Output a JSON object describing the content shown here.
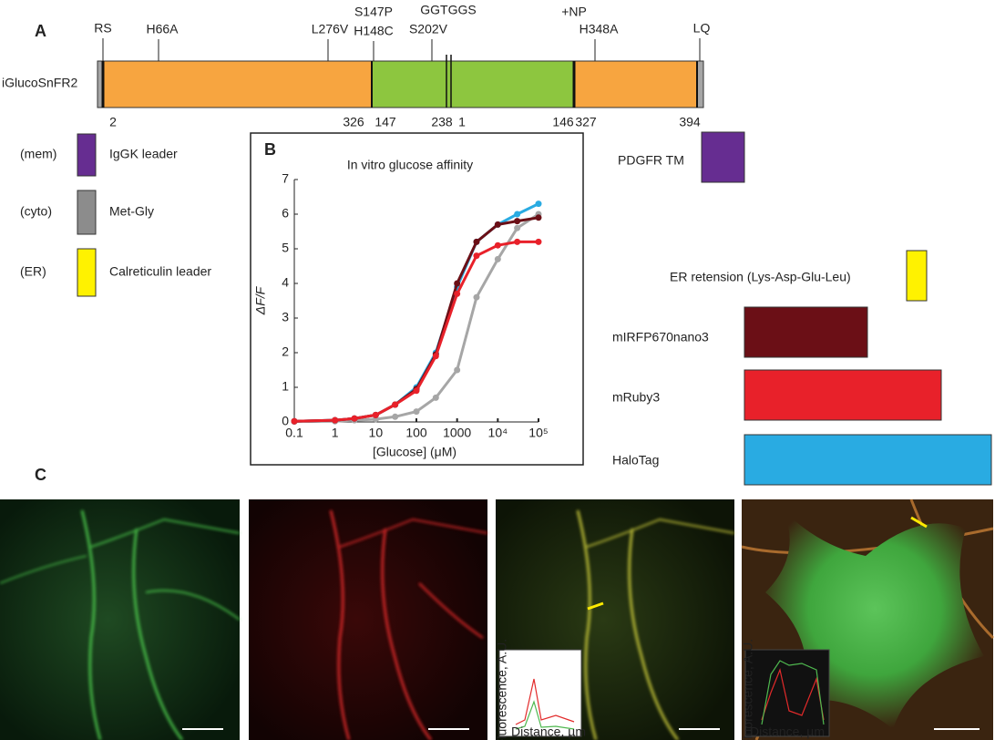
{
  "panel_a": {
    "label": "A",
    "construct": "iGlucoSnFR2",
    "sites": [
      "RS",
      "H66A",
      "L276V",
      "S147P",
      "H148C",
      "S202V",
      "GGTGGS",
      "+NP",
      "H348A",
      "LQ"
    ],
    "positions": [
      2,
      326,
      147,
      238,
      1,
      146,
      327,
      394
    ],
    "left_legend": [
      {
        "compartment": "(mem)",
        "name": "IgGK leader"
      },
      {
        "compartment": "(cyto)",
        "name": "Met-Gly"
      },
      {
        "compartment": "(ER)",
        "name": "Calreticulin leader"
      }
    ],
    "right_legend": [
      "PDGFR TM",
      "ER retension (Lys-Asp-Glu-Leu)"
    ]
  },
  "chart_data": {
    "type": "line",
    "panel_label": "B",
    "title": "In vitro glucose affinity",
    "x_label": "[Glucose] (μM)",
    "y_label": "ΔF/F",
    "x_log": true,
    "x": [
      0.1,
      1,
      3,
      10,
      30,
      100,
      300,
      1000,
      3000,
      10000,
      30000,
      100000
    ],
    "series": [
      {
        "color": "#a6a6a6",
        "values": [
          0.01,
          0.02,
          0.05,
          0.08,
          0.15,
          0.3,
          0.7,
          1.5,
          3.6,
          4.7,
          5.6,
          6.0
        ]
      },
      {
        "name": "HaloTag",
        "color": "#29abe2",
        "values": [
          0.02,
          0.05,
          0.1,
          0.2,
          0.5,
          1.0,
          2.0,
          3.9,
          5.2,
          5.7,
          6.0,
          6.3
        ]
      },
      {
        "name": "mIRFP670nano3",
        "color": "#6b0f16",
        "values": [
          0.02,
          0.05,
          0.1,
          0.2,
          0.5,
          0.95,
          1.95,
          4.0,
          5.2,
          5.7,
          5.8,
          5.9
        ]
      },
      {
        "name": "mRuby3",
        "color": "#e8212a",
        "values": [
          0.02,
          0.05,
          0.1,
          0.2,
          0.5,
          0.9,
          1.9,
          3.7,
          4.8,
          5.1,
          5.2,
          5.2
        ]
      }
    ],
    "xlim": [
      0.1,
      100000
    ],
    "ylim": [
      0,
      7
    ],
    "xticks": [
      0.1,
      1,
      10,
      100,
      1000,
      {
        "value": 10000,
        "label": "10⁴"
      },
      {
        "value": 100000,
        "label": "10⁵"
      }
    ],
    "yticks": [
      0,
      1,
      2,
      3,
      4,
      5,
      6,
      7
    ]
  },
  "panel_c": {
    "label": "C",
    "inset_x_label": "Distance, µm",
    "inset_y_label": "Fluorescence, A.U."
  }
}
